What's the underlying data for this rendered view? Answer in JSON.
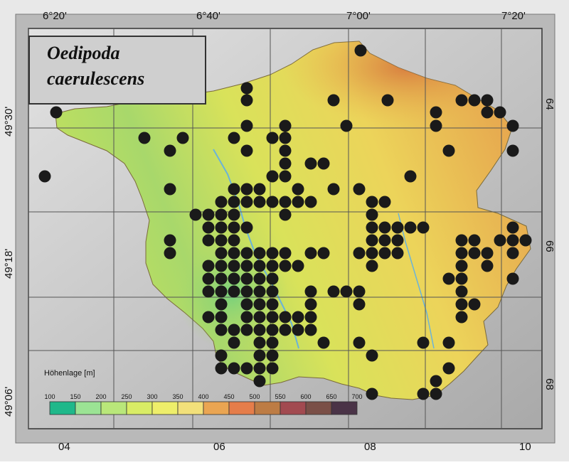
{
  "map": {
    "title_line1": "Oedipoda",
    "title_line2": "caerulescens",
    "top_labels": [
      "6°20'",
      "6°40'",
      "7°00'",
      "7°20'"
    ],
    "left_labels": [
      "49°30'",
      "49°18'",
      "49°06'"
    ],
    "bottom_labels": [
      "04",
      "06",
      "08",
      "10"
    ],
    "right_labels": [
      "64",
      "66",
      "68"
    ],
    "legend": {
      "title": "Höhenlage [m]",
      "ticks": [
        "100",
        "150",
        "200",
        "250",
        "300",
        "350",
        "400",
        "450",
        "500",
        "550",
        "600",
        "650",
        "700"
      ],
      "colors": [
        "#1fb88a",
        "#9be394",
        "#b9e77a",
        "#d9ec65",
        "#eeee6a",
        "#f2e07a",
        "#eaa552",
        "#e57d4a",
        "#bd7c44",
        "#a24a50",
        "#7a4f47",
        "#4a3347"
      ]
    },
    "colors": {
      "frame": "#b3b3b3",
      "background": "#cdcdcd",
      "grid": "#555555",
      "dot": "#1a1a1a"
    }
  }
}
